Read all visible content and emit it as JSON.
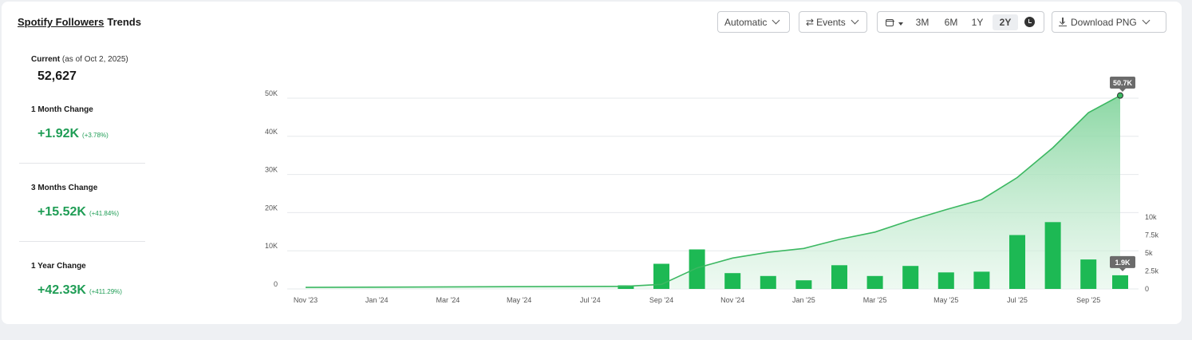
{
  "header": {
    "title_link": "Spotify Followers",
    "title_rest": "Trends"
  },
  "toolbar": {
    "automatic_label": "Automatic",
    "events_label": "Events",
    "ranges": [
      "3M",
      "6M",
      "1Y",
      "2Y"
    ],
    "active_range": "2Y",
    "download_label": "Download PNG"
  },
  "stats": {
    "current_label": "Current",
    "current_sub": "(as of Oct 2, 2025)",
    "current_value": "52,627",
    "m1_label": "1 Month Change",
    "m1_value": "+1.92K",
    "m1_pct": "(+3.78%)",
    "m3_label": "3 Months Change",
    "m3_value": "+15.52K",
    "m3_pct": "(+41.84%)",
    "y1_label": "1 Year Change",
    "y1_value": "+42.33K",
    "y1_pct": "(+411.29%)"
  },
  "colors": {
    "line": "#3cb862",
    "area_top": "#7fd39a",
    "bar": "#1db954",
    "grid": "#e6e8eb",
    "tooltip_bg": "#6b6b6b"
  },
  "chart_data": {
    "type": "line+bar",
    "x_ticks": [
      "Nov '23",
      "Jan '24",
      "Mar '24",
      "May '24",
      "Jul '24",
      "Sep '24",
      "Nov '24",
      "Jan '25",
      "Mar '25",
      "May '25",
      "Jul '25",
      "Sep '25"
    ],
    "left_axis": {
      "ticks": [
        "0",
        "10K",
        "20K",
        "30K",
        "40K",
        "50K"
      ],
      "ylim": [
        0,
        50000
      ]
    },
    "right_axis": {
      "ticks": [
        "0",
        "2.5k",
        "5k",
        "7.5k",
        "10k"
      ],
      "ylim": [
        0,
        10000
      ]
    },
    "followers_series": {
      "name": "Followers",
      "x": [
        0,
        9,
        10,
        11,
        12,
        13,
        14,
        15,
        16,
        17,
        18,
        19,
        20,
        21,
        22,
        23
      ],
      "values": [
        400,
        700,
        1200,
        5500,
        8100,
        9600,
        10600,
        13000,
        14900,
        18000,
        20800,
        23400,
        29200,
        37000,
        46200,
        50700
      ]
    },
    "monthly_gain_series": {
      "name": "Monthly gain",
      "x": [
        9,
        10,
        11,
        12,
        13,
        14,
        15,
        16,
        17,
        18,
        19,
        20,
        21,
        22,
        23
      ],
      "values": [
        500,
        3500,
        5500,
        2200,
        1800,
        1200,
        3300,
        1800,
        3200,
        2300,
        2400,
        7500,
        9300,
        4100,
        1900
      ]
    },
    "x_month_index_of_first_tick": 0,
    "last_point_label": "50.7K",
    "last_bar_label": "1.9K"
  }
}
